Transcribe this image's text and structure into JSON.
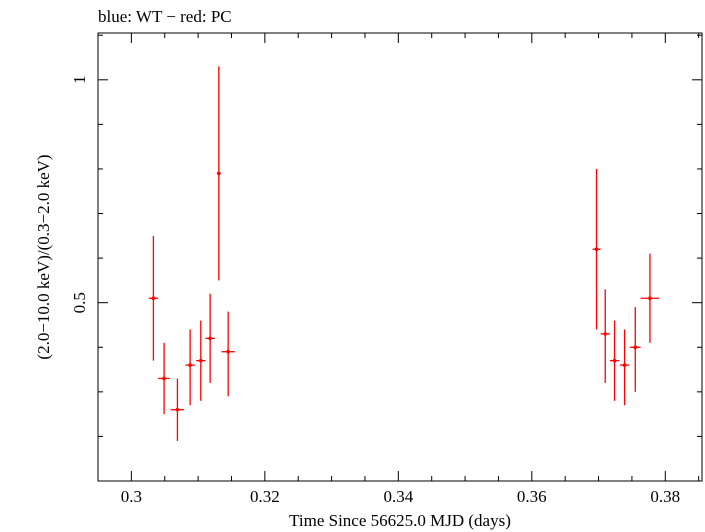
{
  "chart_data": {
    "type": "scatter",
    "title": "blue: WT − red: PC",
    "xlabel": "Time Since 56625.0 MJD (days)",
    "ylabel": "(2.0−10.0 keV)/(0.3−2.0 keV)",
    "xlim": [
      0.295,
      0.3855
    ],
    "ylim": [
      0.1,
      1.105
    ],
    "x_ticks": [
      0.3,
      0.32,
      0.34,
      0.36,
      0.38
    ],
    "x_tick_labels": [
      "0.3",
      "0.32",
      "0.34",
      "0.36",
      "0.38"
    ],
    "y_ticks": [
      0.5,
      1.0
    ],
    "y_tick_labels": [
      "0.5",
      "1"
    ],
    "series": [
      {
        "name": "PC",
        "color": "#ff0000",
        "points": [
          {
            "x": 0.3033,
            "xerr": 0.0007,
            "y": 0.51,
            "ylo": 0.37,
            "yhi": 0.65
          },
          {
            "x": 0.3049,
            "xerr": 0.0009,
            "y": 0.33,
            "ylo": 0.25,
            "yhi": 0.41
          },
          {
            "x": 0.3069,
            "xerr": 0.001,
            "y": 0.26,
            "ylo": 0.19,
            "yhi": 0.33
          },
          {
            "x": 0.3088,
            "xerr": 0.0007,
            "y": 0.36,
            "ylo": 0.27,
            "yhi": 0.44
          },
          {
            "x": 0.3104,
            "xerr": 0.0007,
            "y": 0.37,
            "ylo": 0.28,
            "yhi": 0.46
          },
          {
            "x": 0.3118,
            "xerr": 0.0007,
            "y": 0.42,
            "ylo": 0.32,
            "yhi": 0.52
          },
          {
            "x": 0.3131,
            "xerr": 0.0003,
            "y": 0.79,
            "ylo": 0.55,
            "yhi": 1.03
          },
          {
            "x": 0.3145,
            "xerr": 0.001,
            "y": 0.39,
            "ylo": 0.29,
            "yhi": 0.48
          },
          {
            "x": 0.3697,
            "xerr": 0.0006,
            "y": 0.62,
            "ylo": 0.44,
            "yhi": 0.8
          },
          {
            "x": 0.371,
            "xerr": 0.0007,
            "y": 0.43,
            "ylo": 0.32,
            "yhi": 0.53
          },
          {
            "x": 0.3724,
            "xerr": 0.0007,
            "y": 0.37,
            "ylo": 0.28,
            "yhi": 0.46
          },
          {
            "x": 0.3739,
            "xerr": 0.0007,
            "y": 0.36,
            "ylo": 0.27,
            "yhi": 0.44
          },
          {
            "x": 0.3755,
            "xerr": 0.0008,
            "y": 0.4,
            "ylo": 0.3,
            "yhi": 0.49
          },
          {
            "x": 0.3777,
            "xerr": 0.0014,
            "y": 0.51,
            "ylo": 0.41,
            "yhi": 0.61
          }
        ]
      }
    ]
  }
}
